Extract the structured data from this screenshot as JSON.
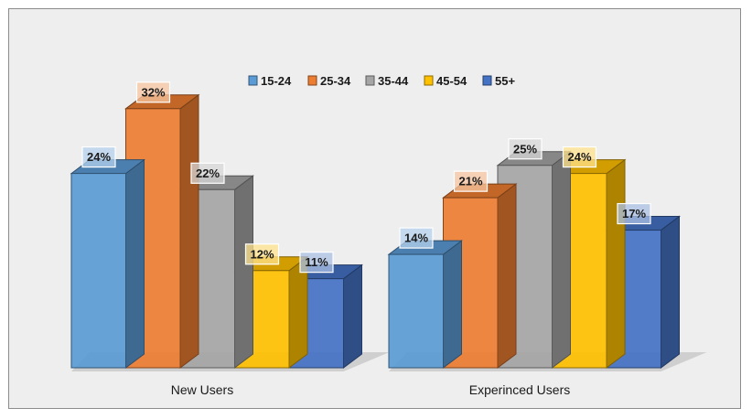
{
  "chart_data": {
    "type": "bar",
    "style": "3d-clustered-column",
    "categories": [
      "New Users",
      "Experinced Users"
    ],
    "series": [
      {
        "name": "15-24",
        "values": [
          24,
          14
        ],
        "color": "#5b9bd5"
      },
      {
        "name": "25-34",
        "values": [
          32,
          21
        ],
        "color": "#ed7d31"
      },
      {
        "name": "35-44",
        "values": [
          22,
          25
        ],
        "color": "#a5a5a5"
      },
      {
        "name": "45-54",
        "values": [
          12,
          24
        ],
        "color": "#ffc000"
      },
      {
        "name": "55+",
        "values": [
          11,
          17
        ],
        "color": "#4472c4"
      }
    ],
    "value_suffix": "%",
    "data_labels": true,
    "legend_position": "top",
    "grid": false,
    "title": "",
    "xlabel": "",
    "ylabel": ""
  }
}
